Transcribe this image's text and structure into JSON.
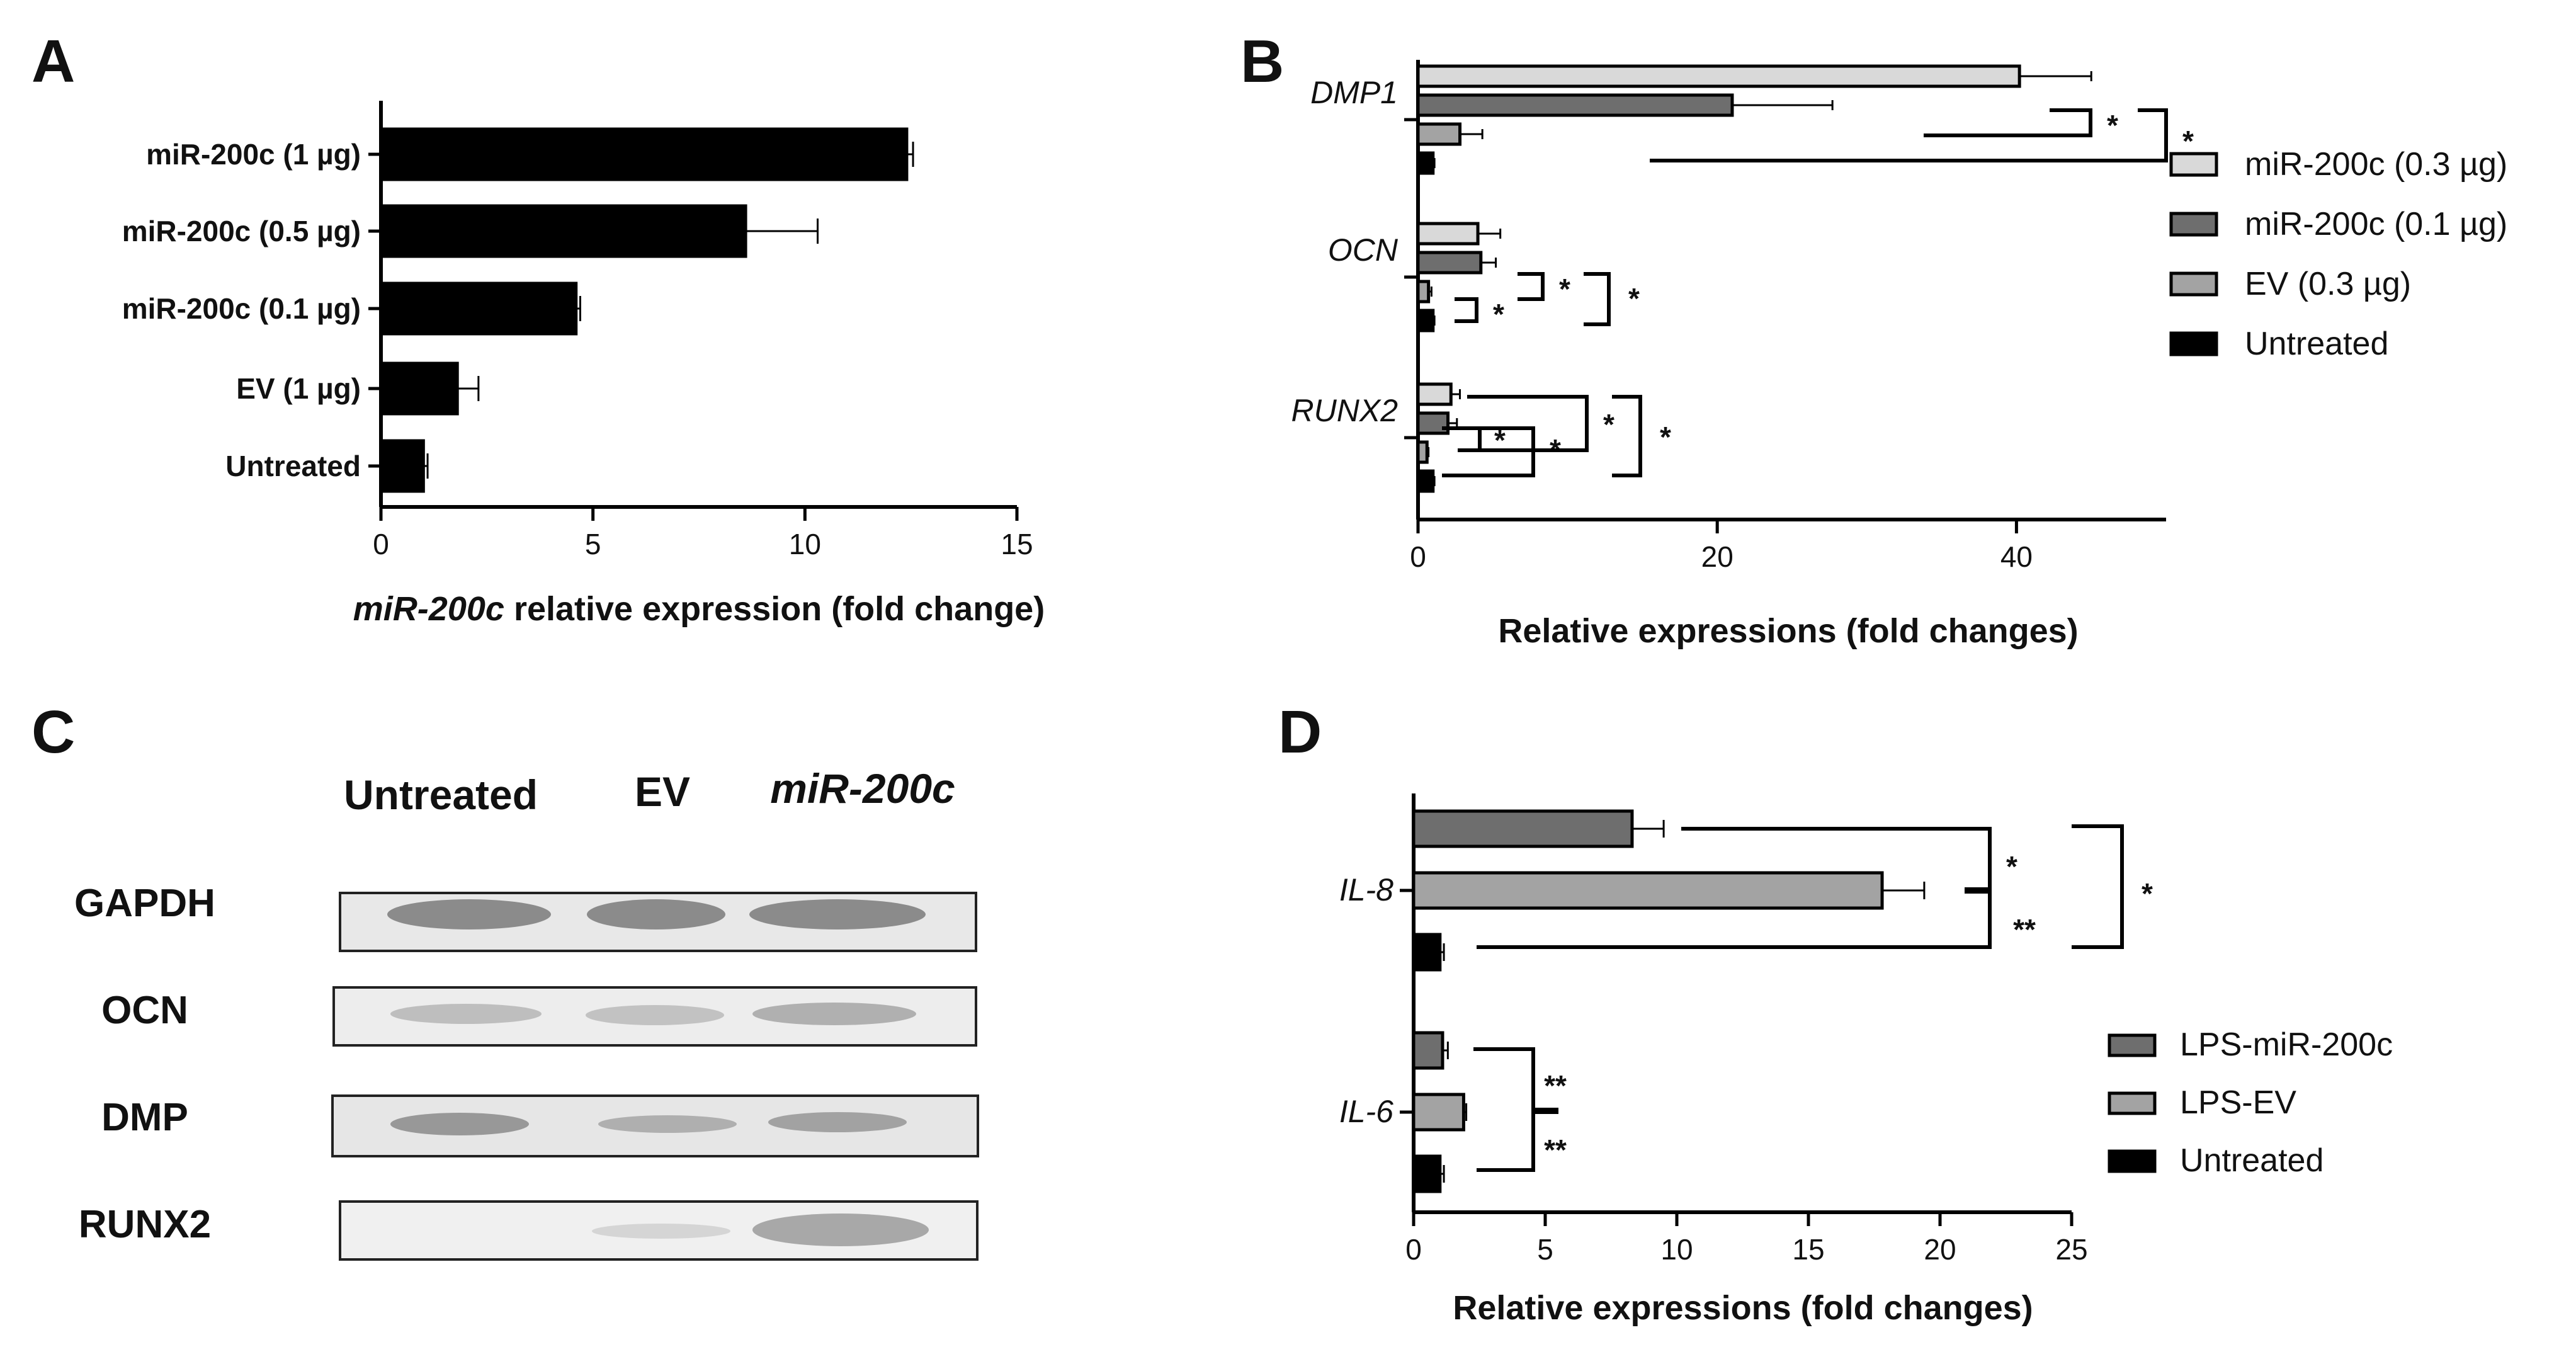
{
  "chart_data": [
    {
      "panel": "A",
      "type": "bar",
      "orientation": "horizontal",
      "xlabel_italic": "miR-200c",
      "xlabel_rest": " relative expression (fold change)",
      "xlim": [
        0,
        15
      ],
      "xticks": [
        0,
        5,
        10,
        15
      ],
      "categories": [
        "miR-200c (1 µg)",
        "miR-200c (0.5 µg)",
        "miR-200c (0.1 µg)",
        "EV (1 µg)",
        "Untreated"
      ],
      "values": [
        12.4,
        8.6,
        4.6,
        1.8,
        1.0
      ],
      "errors": [
        0.15,
        1.7,
        0.1,
        0.5,
        0.1
      ],
      "color": "#000000"
    },
    {
      "panel": "B",
      "type": "bar",
      "orientation": "horizontal",
      "xlabel": "Relative expressions (fold changes)",
      "xlim": [
        0,
        50
      ],
      "xticks": [
        0,
        20,
        40
      ],
      "categories": [
        "DMP1",
        "OCN",
        "RUNX2"
      ],
      "series": [
        {
          "name": "miR-200c (0.3 µg)",
          "color": "#d9d9d9",
          "values": [
            40.2,
            4.0,
            2.2
          ],
          "errors": [
            4.8,
            1.5,
            0.6
          ]
        },
        {
          "name": "miR-200c (0.1 µg)",
          "color": "#6e6e6e",
          "values": [
            21.0,
            4.2,
            2.0
          ],
          "errors": [
            6.7,
            1.0,
            0.6
          ]
        },
        {
          "name": "EV (0.3 µg)",
          "color": "#a3a3a3",
          "values": [
            2.8,
            0.7,
            0.6
          ],
          "errors": [
            1.5,
            0.2,
            0.1
          ]
        },
        {
          "name": "Untreated",
          "color": "#000000",
          "values": [
            1.0,
            1.0,
            1.0
          ],
          "errors": [
            0.1,
            0.1,
            0.1
          ]
        }
      ],
      "significance": [
        "*",
        "*",
        "*",
        "*",
        "*",
        "*",
        "*",
        "*",
        "*"
      ]
    },
    {
      "panel": "D",
      "type": "bar",
      "orientation": "horizontal",
      "xlabel": "Relative expressions (fold changes)",
      "xlim": [
        0,
        25
      ],
      "xticks": [
        0,
        5,
        10,
        15,
        20,
        25
      ],
      "categories": [
        "IL-8",
        "IL-6"
      ],
      "series": [
        {
          "name": "LPS-miR-200c",
          "color": "#6e6e6e",
          "values": [
            8.3,
            1.1
          ],
          "errors": [
            1.2,
            0.2
          ]
        },
        {
          "name": "LPS-EV",
          "color": "#a3a3a3",
          "values": [
            17.8,
            1.9
          ],
          "errors": [
            1.6,
            0.1
          ]
        },
        {
          "name": "Untreated",
          "color": "#000000",
          "values": [
            1.0,
            1.0
          ],
          "errors": [
            0.15,
            0.15
          ]
        }
      ],
      "significance": [
        "*",
        "**",
        "*",
        "**",
        "**"
      ]
    }
  ],
  "panels": {
    "A": {
      "letter": "A"
    },
    "B": {
      "letter": "B"
    },
    "C": {
      "letter": "C",
      "column_headers": [
        "Untreated",
        "EV",
        "miR-200c"
      ],
      "rows": [
        "GAPDH",
        "OCN",
        "DMP",
        "RUNX2"
      ]
    },
    "D": {
      "letter": "D"
    }
  }
}
